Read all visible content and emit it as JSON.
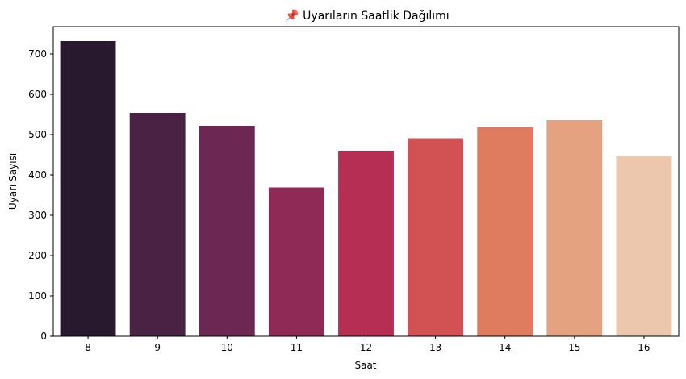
{
  "chart_data": {
    "type": "bar",
    "title": "📌 Uyarıların Saatlik Dağılımı",
    "xlabel": "Saat",
    "ylabel": "Uyarı Sayısı",
    "categories": [
      "8",
      "9",
      "10",
      "11",
      "12",
      "13",
      "14",
      "15",
      "16"
    ],
    "values": [
      732,
      554,
      522,
      369,
      460,
      491,
      518,
      536,
      448
    ],
    "colors": [
      "#28192f",
      "#4a2243",
      "#6c2852",
      "#8f2a56",
      "#b72e55",
      "#d25254",
      "#df7c5f",
      "#e4a281",
      "#ecc7ae"
    ],
    "ylim": [
      0,
      768
    ],
    "yticks": [
      0,
      100,
      200,
      300,
      400,
      500,
      600,
      700
    ],
    "grid": false,
    "legend": "none"
  }
}
